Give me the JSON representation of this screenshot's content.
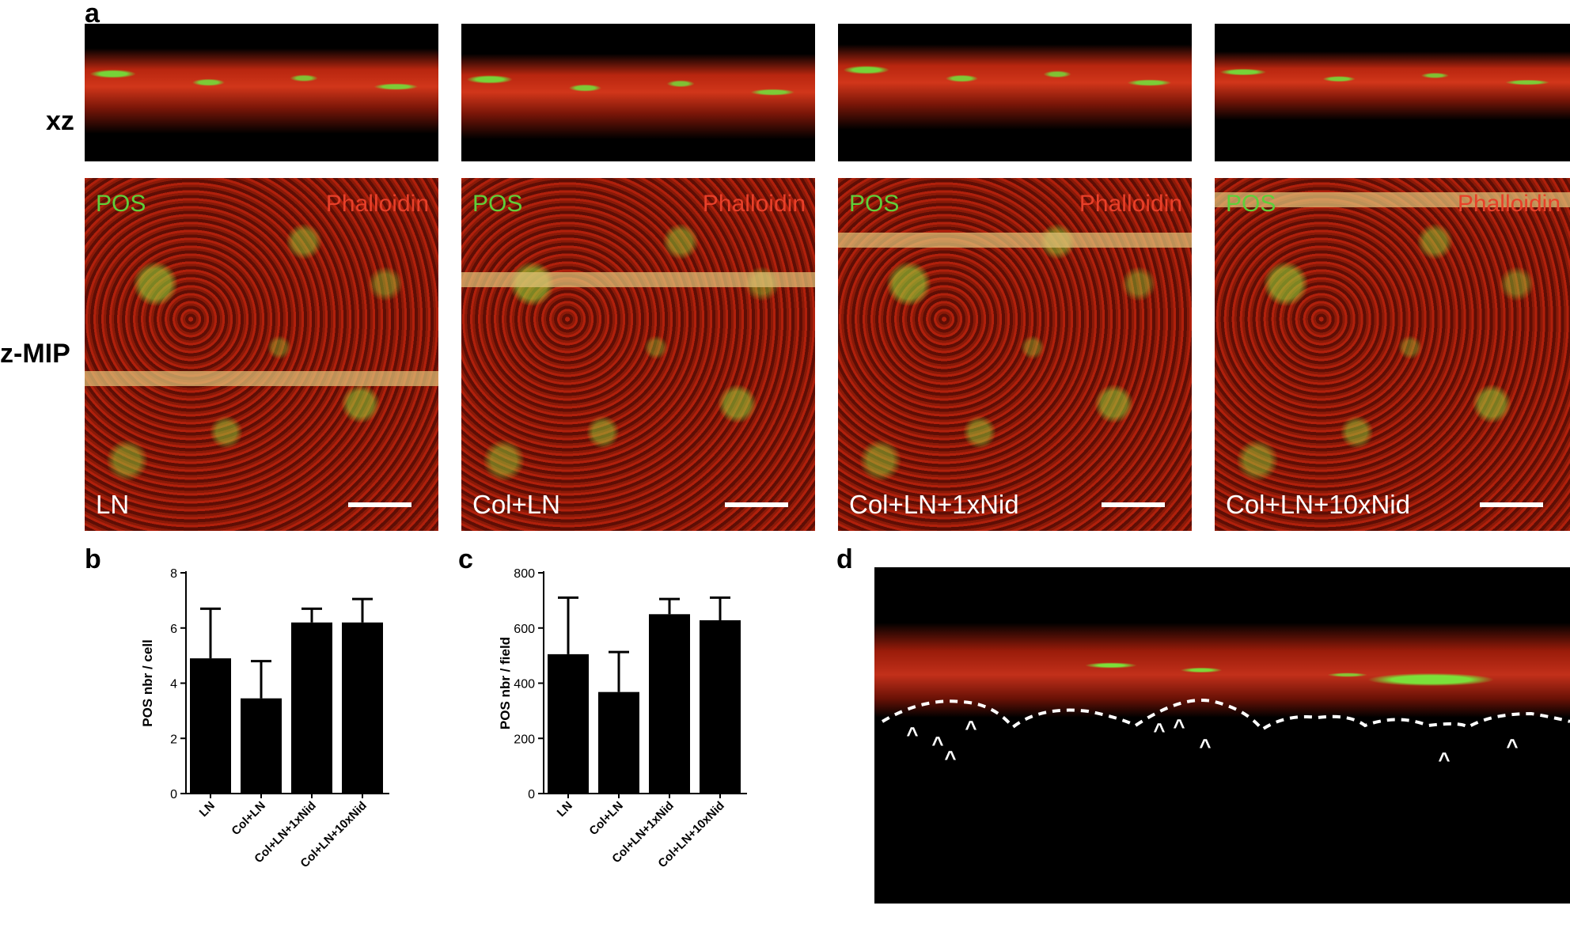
{
  "panel_letters": {
    "a": "a",
    "b": "b",
    "c": "c",
    "d": "d"
  },
  "row_labels": {
    "xz": "xz",
    "zmip": "z-MIP"
  },
  "channels": {
    "pos": "POS",
    "phalloidin": "Phalloidin"
  },
  "conditions": [
    "LN",
    "Col+LN",
    "Col+LN+1xNid",
    "Col+LN+10xNid"
  ],
  "colors": {
    "pos_green": "#5fcf3a",
    "phalloidin_red": "#e8402a",
    "bar_fill": "#000000"
  },
  "chart_data": [
    {
      "type": "bar",
      "panel": "b",
      "categories": [
        "LN",
        "Col+LN",
        "Col+LN+1xNid",
        "Col+LN+10xNid"
      ],
      "values": [
        4.9,
        3.45,
        6.2,
        6.2
      ],
      "errors": [
        1.8,
        1.35,
        0.5,
        0.85
      ],
      "ylabel": "POS nbr / cell",
      "ylim": [
        0,
        8
      ],
      "yticks": [
        "0",
        "2",
        "4",
        "6",
        "8"
      ]
    },
    {
      "type": "bar",
      "panel": "c",
      "categories": [
        "LN",
        "Col+LN",
        "Col+LN+1xNid",
        "Col+LN+10xNid"
      ],
      "values": [
        505,
        368,
        650,
        628
      ],
      "errors": [
        205,
        145,
        55,
        82
      ],
      "ylabel": "POS nbr / field",
      "ylim": [
        0,
        800
      ],
      "yticks": [
        "0",
        "200",
        "400",
        "600",
        "800"
      ]
    }
  ],
  "panel_d": {
    "marker": "^",
    "marker_count": 10
  }
}
